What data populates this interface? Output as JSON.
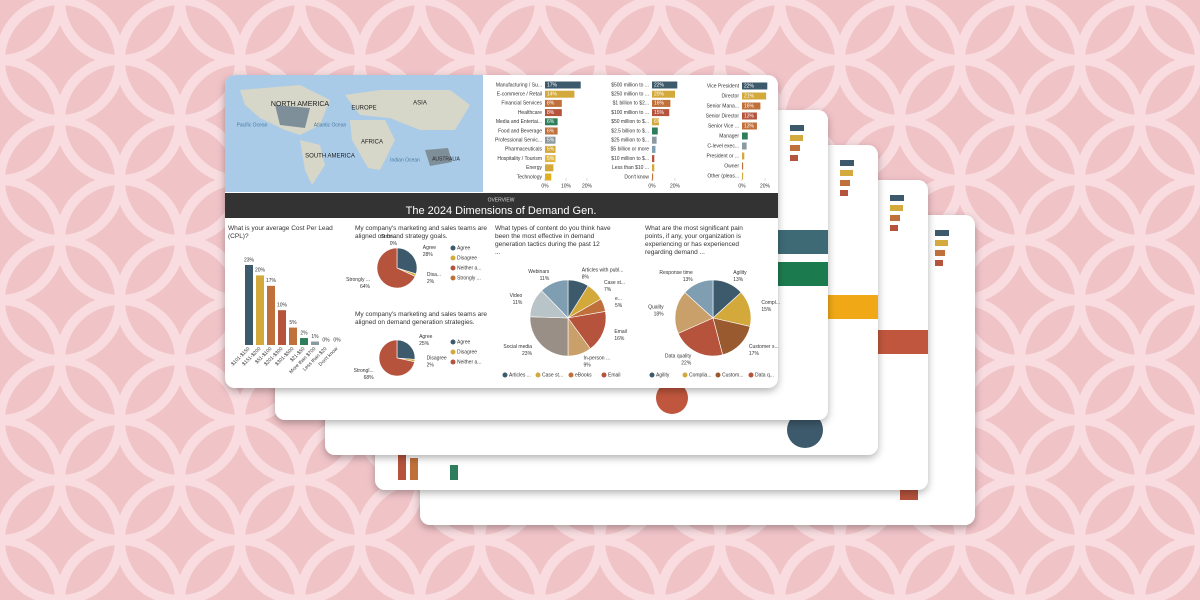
{
  "banner": {
    "kicker": "OVERVIEW",
    "title": "The 2024 Dimensions of Demand Gen."
  },
  "map": {
    "labels": [
      "NORTH AMERICA",
      "EUROPE",
      "ASIA",
      "AFRICA",
      "SOUTH AMERICA",
      "AUSTRALIA",
      "Pacific Ocean",
      "Atlantic Ocean",
      "Indian Ocean"
    ]
  },
  "chart_data": [
    {
      "type": "hbar",
      "categories": [
        "Manufacturing / Su...",
        "E-commerce / Retail",
        "Financial Services",
        "Healthcare",
        "Media and Entertai...",
        "Food and Beverage",
        "Professional Servic...",
        "Pharmaceuticals",
        "Hospitality / Tourism",
        "Energy",
        "Technology"
      ],
      "values": [
        17,
        14,
        8,
        8,
        6,
        6,
        5,
        5,
        5,
        4,
        3
      ],
      "value_labels": [
        "17%",
        "14%",
        "8%",
        "8%",
        "6%",
        "6%",
        "5%",
        "5%",
        "5%",
        null,
        null
      ],
      "colors": [
        "#3d5a6c",
        "#d4a93c",
        "#c0703a",
        "#b5533c",
        "#2e7d5b",
        "#c0703a",
        "#8a9aa0",
        "#d4a93c",
        "#e0b84a",
        "#d4a93c",
        "#e0b020"
      ],
      "xlim": [
        0,
        20
      ],
      "xticks": [
        {
          "value": 0,
          "label": "0%"
        },
        {
          "value": 10,
          "label": "10%"
        },
        {
          "value": 20,
          "label": "20%"
        }
      ]
    },
    {
      "type": "hbar",
      "categories": [
        "$500 million to ...",
        "$250 million to ...",
        "$1 billion to $2...",
        "$100 million to ...",
        "$50 million to $...",
        "$2.5 billion to $...",
        "$25 million to $...",
        "$5 billion or more",
        "$10 million to $...",
        "Less than $10 ...",
        "Don't know"
      ],
      "values": [
        22,
        20,
        16,
        15,
        6,
        5,
        4,
        3,
        2,
        2,
        1
      ],
      "value_labels": [
        "22%",
        "20%",
        "16%",
        "15%",
        "6%",
        null,
        null,
        null,
        null,
        null,
        null
      ],
      "colors": [
        "#3d5a6c",
        "#d4a93c",
        "#c0703a",
        "#b5533c",
        "#d4a93c",
        "#2e7d5b",
        "#8a9aa0",
        "#7f9eb2",
        "#b5533c",
        "#d4a93c",
        "#c0703a"
      ],
      "xlim": [
        0,
        20
      ],
      "xticks": [
        {
          "value": 0,
          "label": "0%"
        },
        {
          "value": 20,
          "label": "20%"
        }
      ]
    },
    {
      "type": "hbar",
      "categories": [
        "Vice President",
        "Director",
        "Senior Mana...",
        "Senior Director",
        "Senior Vice ...",
        "Manager",
        "C-level exec...",
        "President or ...",
        "Owner",
        "Other (pleas..."
      ],
      "values": [
        22,
        21,
        16,
        13,
        13,
        5,
        4,
        2,
        1,
        1
      ],
      "value_labels": [
        "22%",
        "21%",
        "16%",
        "13%",
        "13%",
        null,
        null,
        null,
        null,
        null
      ],
      "colors": [
        "#3d5a6c",
        "#d4a93c",
        "#c0703a",
        "#b5533c",
        "#c0703a",
        "#2e7d5b",
        "#8a9aa0",
        "#d4a93c",
        "#c0703a",
        "#d4a93c"
      ],
      "xlim": [
        0,
        20
      ],
      "xticks": [
        {
          "value": 0,
          "label": "0%"
        },
        {
          "value": 20,
          "label": "20%"
        }
      ]
    },
    {
      "type": "vbar",
      "title": "What is your average Cost Per Lead (CPL)?",
      "categories": [
        "$101-$150",
        "$151-$200",
        "$51-$100",
        "$201-$300",
        "$301-$500",
        "$21-$50",
        "More than $700",
        "Less than $20",
        "Don't know"
      ],
      "values": [
        23,
        20,
        17,
        10,
        5,
        2,
        1,
        0,
        0
      ],
      "value_labels": [
        "23%",
        "20%",
        "17%",
        "10%",
        "5%",
        "2%",
        "1%",
        "0%",
        "0%"
      ],
      "colors": [
        "#3d5a6c",
        "#d4a93c",
        "#c0703a",
        "#b5533c",
        "#c0703a",
        "#2e7d5b",
        "#8a9aa0",
        "#7f9eb2",
        "#e0b020"
      ],
      "ylim": [
        0,
        25
      ]
    },
    {
      "type": "pie",
      "title": "My company's marketing and sales teams are aligned on brand strategy goals.",
      "categories": [
        "Agree",
        "Disa...",
        "Strongly ...",
        "Stron..."
      ],
      "values": [
        28,
        2,
        64,
        0
      ],
      "value_labels": [
        "28%",
        "2%",
        "64%",
        "0%"
      ],
      "legend": [
        "Agree",
        "Disagree",
        "Neither a...",
        "Strongly ..."
      ],
      "colors": [
        "#3d5a6c",
        "#d4a93c",
        "#b5533c",
        "#c0703a"
      ]
    },
    {
      "type": "pie",
      "title": "My company's marketing and sales teams are aligned on demand generation strategies.",
      "categories": [
        "Agree",
        "Disagree",
        "Strongl..."
      ],
      "values": [
        25,
        2,
        68
      ],
      "value_labels": [
        "25%",
        "2%",
        "68%"
      ],
      "legend": [
        "Agree",
        "Disagree",
        "Neither a..."
      ],
      "colors": [
        "#3d5a6c",
        "#d4a93c",
        "#b5533c"
      ]
    },
    {
      "type": "pie",
      "title": "What types of content do you think have been the most effective in demand generation tactics during the past 12 ...",
      "categories": [
        "Articles with publ...",
        "Case st...",
        "e...",
        "Email",
        "In-person ...",
        "Social media",
        "Video",
        "Webinars"
      ],
      "values": [
        8,
        7,
        5,
        16,
        9,
        23,
        11,
        11
      ],
      "value_labels": [
        "8%",
        "7%",
        "5%",
        "16%",
        "9%",
        "23%",
        "11%",
        "11%"
      ],
      "legend": [
        "Articles ...",
        "Case st...",
        "eBooks",
        "Email"
      ],
      "colors": [
        "#3d5a6c",
        "#d4a93c",
        "#c0703a",
        "#b5533c",
        "#c9a06a",
        "#9a8f86",
        "#b8c4c8",
        "#7f9eb2"
      ]
    },
    {
      "type": "pie",
      "title": "What are the most significant pain points, if any, your organization is experiencing or has experienced regarding demand ...",
      "categories": [
        "Agility",
        "Compl...",
        "Customer s...",
        "Data quality",
        "Quality",
        "Response time"
      ],
      "values": [
        13,
        15,
        17,
        22,
        18,
        13
      ],
      "value_labels": [
        "13%",
        "15%",
        "17%",
        "22%",
        "18%",
        "13%"
      ],
      "legend": [
        "Agility",
        "Complia...",
        "Custom...",
        "Data q..."
      ],
      "colors": [
        "#3d5a6c",
        "#d4a93c",
        "#9a5a30",
        "#b5533c",
        "#c9a06a",
        "#7f9eb2"
      ]
    }
  ]
}
